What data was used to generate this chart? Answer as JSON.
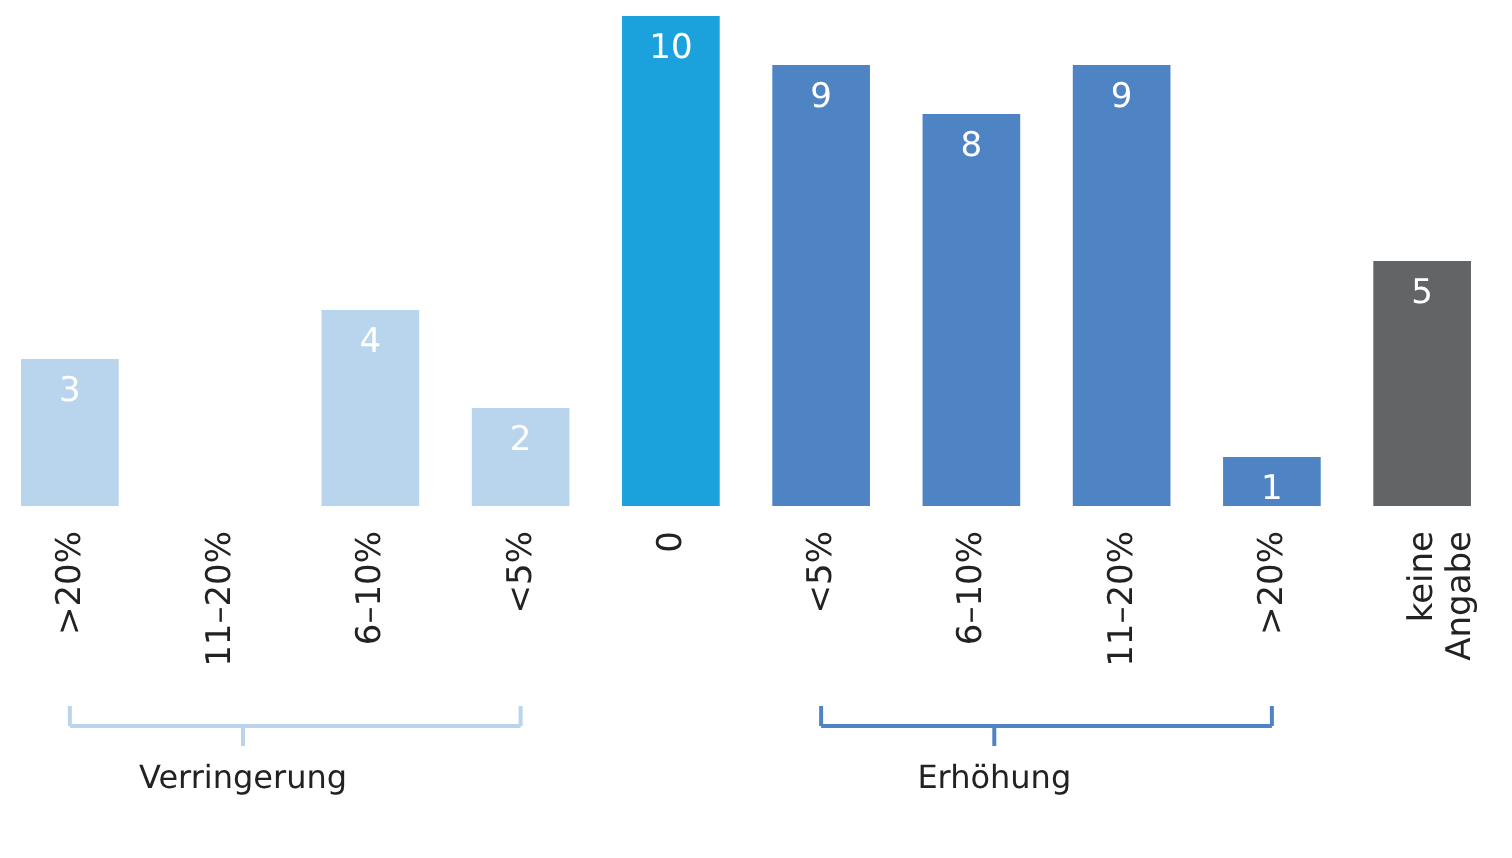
{
  "chart_data": {
    "type": "bar",
    "categories": [
      ">20%",
      "11–20%",
      "6–10%",
      "<5%",
      "0",
      "<5%",
      "6–10%",
      "11–20%",
      ">20%",
      "keine\nAngabe"
    ],
    "values": [
      3,
      0,
      4,
      2,
      10,
      9,
      8,
      9,
      1,
      5
    ],
    "colors": [
      "#b8d5ed",
      "#b8d5ed",
      "#b8d5ed",
      "#b8d5ed",
      "#1ba1db",
      "#4f84c4",
      "#4f84c4",
      "#4f84c4",
      "#4f84c4",
      "#636466"
    ],
    "value_labels": [
      "3",
      null,
      "4",
      "2",
      "10",
      "9",
      "8",
      "9",
      "1",
      "5"
    ],
    "ylim": [
      0,
      10
    ],
    "annotations": [
      "Verringerung",
      "Erhöhung"
    ]
  }
}
